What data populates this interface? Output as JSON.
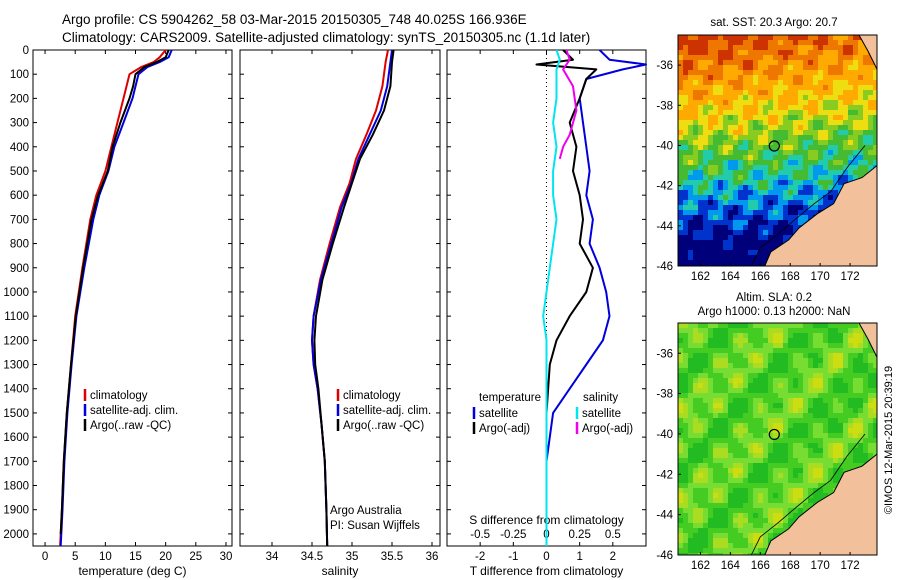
{
  "header": {
    "line1": "Argo profile: CS 5904262_58 03-Mar-2015 20150305_748 40.025S 166.936E",
    "line2": "Climatology: CARS2009. Satellite-adjusted climatology: synTS_20150305.nc (1.1d later)"
  },
  "footer_credit": "Argo Australia",
  "pi_credit": "PI: Susan Wijffels",
  "side_credit": "©IMOS 12-Mar-2015 20:39:19",
  "colors": {
    "climatology": "#dd0000",
    "satellite": "#0000dd",
    "argo": "#000000",
    "sat_s": "#00e5ee",
    "argo_s": "#ee00ee"
  },
  "chart_data": [
    {
      "type": "line",
      "name_key": "temperature",
      "xlabel": "temperature (deg C)",
      "xlim": [
        -2,
        31
      ],
      "ylim": [
        0,
        2050
      ],
      "xticks": [
        "0",
        "5",
        "10",
        "15",
        "20",
        "25",
        "30"
      ],
      "xtick_vals": [
        0,
        5,
        10,
        15,
        20,
        25,
        30
      ],
      "yticks": [
        "0",
        "100",
        "200",
        "300",
        "400",
        "500",
        "600",
        "700",
        "800",
        "900",
        "1000",
        "1100",
        "1200",
        "1300",
        "1400",
        "1500",
        "1600",
        "1700",
        "1800",
        "1900",
        "2000"
      ],
      "legend": [
        "climatology",
        "satellite-adj. clim.",
        "Argo(..raw -QC)"
      ],
      "series": [
        {
          "name": "climatology",
          "color": "#dd0000",
          "x": [
            20.0,
            19.0,
            18.0,
            16.0,
            14.0,
            13.5,
            13.0,
            12.0,
            11.0,
            10.0,
            8.5,
            7.5,
            6.2,
            5.0,
            4.3,
            3.6,
            3.1,
            2.8,
            2.6,
            2.5
          ],
          "y": [
            0,
            30,
            50,
            70,
            100,
            150,
            200,
            300,
            400,
            500,
            600,
            700,
            900,
            1100,
            1300,
            1500,
            1700,
            1900,
            2000,
            2050
          ]
        },
        {
          "name": "satellite-adj. clim.",
          "color": "#0000dd",
          "x": [
            21.0,
            20.5,
            19.0,
            17.0,
            15.5,
            15.0,
            14.5,
            13.0,
            11.5,
            10.5,
            9.0,
            8.0,
            6.5,
            5.2,
            4.4,
            3.7,
            3.2,
            2.9,
            2.7,
            2.6
          ],
          "y": [
            0,
            30,
            50,
            70,
            100,
            150,
            200,
            300,
            400,
            500,
            600,
            700,
            900,
            1100,
            1300,
            1500,
            1700,
            1900,
            2000,
            2050
          ]
        },
        {
          "name": "Argo(..raw -QC)",
          "color": "#000000",
          "x": [
            20.5,
            20.0,
            18.5,
            16.5,
            15.0,
            14.6,
            14.0,
            12.5,
            11.2,
            10.4,
            8.8,
            7.7,
            6.3,
            5.1,
            4.3,
            3.6,
            3.1,
            2.8,
            2.6
          ],
          "y": [
            0,
            30,
            50,
            70,
            100,
            150,
            200,
            300,
            400,
            500,
            600,
            700,
            900,
            1100,
            1300,
            1500,
            1700,
            1900,
            2000
          ]
        }
      ]
    },
    {
      "type": "line",
      "name_key": "salinity",
      "xlabel": "salinity",
      "xlim": [
        33.6,
        36.1
      ],
      "ylim": [
        0,
        2050
      ],
      "xticks": [
        "34",
        "34.5",
        "35",
        "35.5",
        "36"
      ],
      "xtick_vals": [
        34,
        34.5,
        35,
        35.5,
        36
      ],
      "legend": [
        "climatology",
        "satellite-adj. clim.",
        "Argo(..raw -QC)"
      ],
      "series": [
        {
          "name": "climatology",
          "color": "#dd0000",
          "x": [
            35.45,
            35.42,
            35.4,
            35.38,
            35.3,
            35.18,
            35.05,
            34.97,
            34.85,
            34.72,
            34.6,
            34.52,
            34.5,
            34.52,
            34.57,
            34.62,
            34.66,
            34.68,
            34.69
          ],
          "y": [
            0,
            50,
            100,
            150,
            250,
            350,
            450,
            550,
            650,
            800,
            950,
            1100,
            1200,
            1300,
            1400,
            1550,
            1700,
            1900,
            2050
          ]
        },
        {
          "name": "satellite-adj. clim.",
          "color": "#0000dd",
          "x": [
            35.5,
            35.48,
            35.46,
            35.44,
            35.36,
            35.22,
            35.08,
            34.99,
            34.87,
            34.74,
            34.61,
            34.52,
            34.5,
            34.52,
            34.57,
            34.62,
            34.66,
            34.68,
            34.69
          ],
          "y": [
            0,
            50,
            100,
            150,
            250,
            350,
            450,
            550,
            650,
            800,
            950,
            1100,
            1200,
            1300,
            1400,
            1550,
            1700,
            1900,
            2050
          ]
        },
        {
          "name": "Argo(..raw -QC)",
          "color": "#000000",
          "x": [
            35.52,
            35.5,
            35.49,
            35.48,
            35.4,
            35.26,
            35.1,
            35.0,
            34.9,
            34.76,
            34.63,
            34.55,
            34.53,
            34.54,
            34.58,
            34.62,
            34.66,
            34.68,
            34.69
          ],
          "y": [
            0,
            50,
            100,
            150,
            250,
            350,
            450,
            550,
            650,
            800,
            950,
            1100,
            1200,
            1300,
            1400,
            1550,
            1700,
            1900,
            2050
          ]
        }
      ]
    },
    {
      "type": "line",
      "name_key": "difference",
      "xlabel": "T difference from climatology",
      "xlabel_top": "S difference from climatology",
      "xlim": [
        -3,
        3
      ],
      "ylim": [
        0,
        2050
      ],
      "xticks": [
        "-2",
        "-1",
        "0",
        "1",
        "2"
      ],
      "xtick_vals": [
        -2,
        -1,
        0,
        1,
        2
      ],
      "sticks": [
        "-0.5",
        "-0.25",
        "0",
        "0.25",
        "0.5"
      ],
      "stick_vals": [
        -2,
        -1,
        0,
        1,
        2
      ],
      "legend_t_head": "temperature",
      "legend_s_head": "salinity",
      "legend_t": [
        "satellite",
        "Argo(-adj)"
      ],
      "legend_s": [
        "satellite",
        "Argo(-adj)"
      ],
      "series": [
        {
          "name": "T satellite",
          "color": "#0000dd",
          "x": [
            1.6,
            1.9,
            3.0,
            2.3,
            1.2,
            1.0,
            1.1,
            1.2,
            1.3,
            1.2,
            1.4,
            1.3,
            1.6,
            1.8,
            1.9,
            1.7,
            1.2,
            0.7,
            0.2,
            0.0,
            0.0
          ],
          "y": [
            0,
            40,
            60,
            80,
            120,
            200,
            300,
            400,
            500,
            600,
            700,
            800,
            900,
            1000,
            1100,
            1200,
            1300,
            1400,
            1500,
            1700,
            2050
          ]
        },
        {
          "name": "T Argo(-adj)",
          "color": "#000000",
          "x": [
            0.5,
            0.8,
            -0.3,
            1.5,
            1.2,
            1.0,
            0.7,
            0.9,
            0.8,
            1.0,
            1.1,
            1.0,
            1.4,
            1.2,
            0.7,
            0.3,
            0.1,
            0.0,
            0.0
          ],
          "y": [
            0,
            40,
            60,
            80,
            120,
            200,
            300,
            400,
            500,
            600,
            700,
            800,
            900,
            1000,
            1100,
            1200,
            1300,
            1500,
            1700
          ]
        },
        {
          "name": "S satellite",
          "color": "#00e5ee",
          "x": [
            0.3,
            0.4,
            0.3,
            0.3,
            0.2,
            0.3,
            0.2,
            0.2,
            0.3,
            0.2,
            0.1,
            0.0,
            -0.1,
            0.0,
            0.0,
            0.0,
            0.0,
            0.0
          ],
          "y": [
            0,
            40,
            80,
            200,
            300,
            400,
            500,
            600,
            700,
            800,
            900,
            1000,
            1100,
            1200,
            1400,
            1600,
            1800,
            2050
          ]
        },
        {
          "name": "S Argo(-adj)",
          "color": "#ee00ee",
          "x": [
            0.6,
            0.7,
            0.5,
            0.8,
            0.9,
            0.7,
            0.5,
            0.4
          ],
          "y": [
            0,
            40,
            80,
            150,
            250,
            350,
            400,
            450
          ]
        }
      ]
    },
    {
      "type": "heatmap",
      "name_key": "sst",
      "title": "sat. SST: 20.3  Argo: 20.7",
      "xticks": [
        "162",
        "164",
        "166",
        "168",
        "170",
        "172"
      ],
      "xtick_vals": [
        162,
        164,
        166,
        168,
        170,
        172
      ],
      "yticks": [
        "-36",
        "-38",
        "-40",
        "-42",
        "-44",
        "-46"
      ],
      "ytick_vals": [
        -36,
        -38,
        -40,
        -42,
        -44,
        -46
      ],
      "xlim": [
        160.5,
        173.8
      ],
      "ylim": [
        -46,
        -34.5
      ],
      "marker": [
        166.936,
        -40.025
      ]
    },
    {
      "type": "heatmap",
      "name_key": "sla",
      "title": "Altim. SLA: 0.2",
      "subtitle": "Argo h1000: 0.13 h2000: NaN",
      "xticks": [
        "162",
        "164",
        "166",
        "168",
        "170",
        "172"
      ],
      "xtick_vals": [
        162,
        164,
        166,
        168,
        170,
        172
      ],
      "yticks": [
        "-36",
        "-38",
        "-40",
        "-42",
        "-44",
        "-46"
      ],
      "ytick_vals": [
        -36,
        -38,
        -40,
        -42,
        -44,
        -46
      ],
      "xlim": [
        160.5,
        173.8
      ],
      "ylim": [
        -46,
        -34.5
      ],
      "marker": [
        166.936,
        -40.025
      ]
    }
  ]
}
